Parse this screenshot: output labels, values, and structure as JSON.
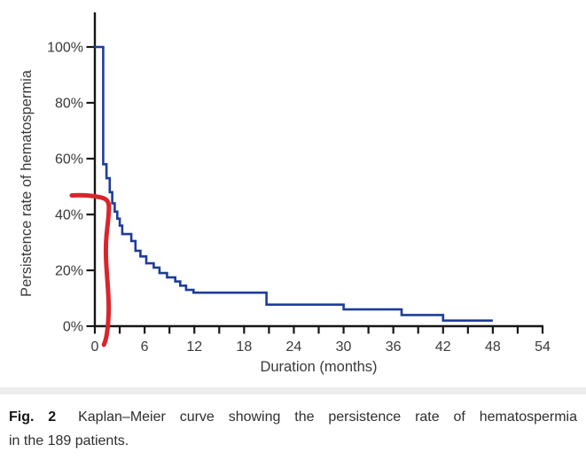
{
  "figure": {
    "caption": {
      "label": "Fig. 2",
      "line1": "Kaplan–Meier curve showing the persistence rate of hematospermia",
      "line2": "in the 189 patients."
    }
  },
  "chart_data": {
    "type": "line",
    "subtype": "kaplan-meier-step",
    "title": "",
    "xlabel": "Duration (months)",
    "ylabel": "Persistence rate of hematospermia",
    "xlim": [
      0,
      54
    ],
    "ylim": [
      0,
      100
    ],
    "x_major_ticks": [
      0,
      6,
      12,
      18,
      24,
      30,
      36,
      42,
      48,
      54
    ],
    "x_minor_tick_interval": 3,
    "y_ticks": [
      0,
      20,
      40,
      60,
      80,
      100
    ],
    "y_tick_suffix": "%",
    "grid": false,
    "legend": "none",
    "axis_color": "#161616",
    "series": [
      {
        "name": "Persistence rate of hematospermia",
        "color": "#1e3d99",
        "start": {
          "t": 0,
          "p": 100
        },
        "end_t": 48,
        "steps": [
          [
            1.0,
            58
          ],
          [
            1.4,
            53
          ],
          [
            1.8,
            48
          ],
          [
            2.1,
            44
          ],
          [
            2.4,
            41
          ],
          [
            2.7,
            38.5
          ],
          [
            3.0,
            36
          ],
          [
            3.3,
            33
          ],
          [
            4.4,
            30.5
          ],
          [
            4.9,
            27
          ],
          [
            5.5,
            25
          ],
          [
            6.2,
            22.5
          ],
          [
            7.1,
            21
          ],
          [
            7.8,
            19
          ],
          [
            8.7,
            17.5
          ],
          [
            9.7,
            16
          ],
          [
            10.3,
            14.5
          ],
          [
            11.0,
            13
          ],
          [
            11.9,
            12
          ],
          [
            20.7,
            7.7
          ],
          [
            30.0,
            6
          ],
          [
            37.0,
            4
          ],
          [
            42.0,
            2
          ]
        ]
      }
    ],
    "annotation": {
      "name": "red-reference-mark",
      "color": "#d8252c",
      "description": "Hand-drawn red mark: horizontal arm at ~46% persistence crossing the curve near 2 months, then descending vertically to the x-axis near 2 months",
      "horizontal_level_pct": 46,
      "vertical_at_month": 1.7
    }
  }
}
